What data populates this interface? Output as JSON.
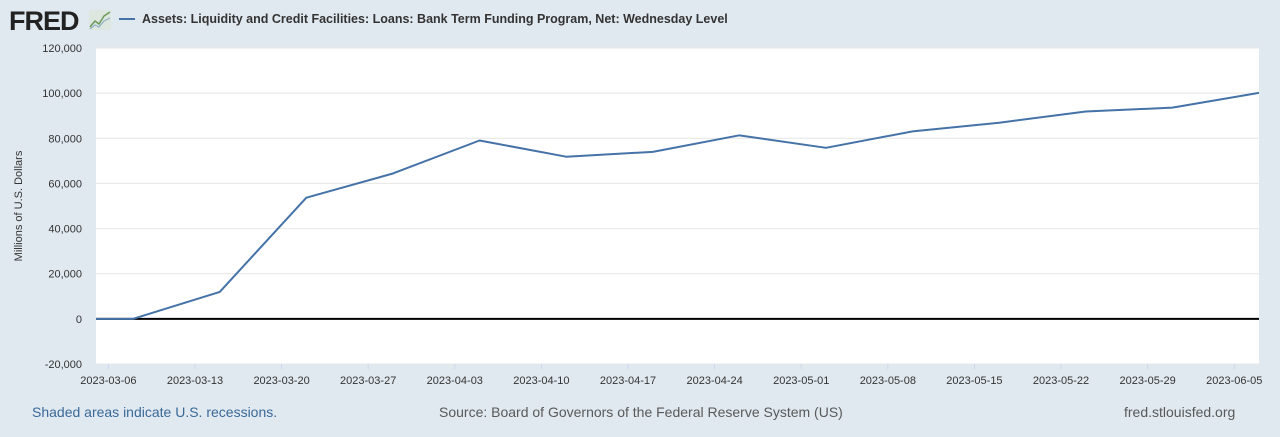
{
  "logo": "FRED",
  "legend": {
    "label": "Assets: Liquidity and Credit Facilities: Loans: Bank Term Funding Program, Net: Wednesday Level",
    "color": "#4572a7"
  },
  "footer": {
    "recessions_note": "Shaded areas indicate U.S. recessions.",
    "source": "Source: Board of Governors of the Federal Reserve System (US)",
    "site": "fred.stlouisfed.org"
  },
  "chart_data": {
    "type": "line",
    "title": "",
    "xlabel": "",
    "ylabel": "Millions of U.S. Dollars",
    "xlim": [
      "2023-03-05",
      "2023-06-07"
    ],
    "ylim": [
      -20000,
      120000
    ],
    "yticks": [
      -20000,
      0,
      20000,
      40000,
      60000,
      80000,
      100000,
      120000
    ],
    "ytick_labels": [
      "-20,000",
      "0",
      "20,000",
      "40,000",
      "60,000",
      "80,000",
      "100,000",
      "120,000"
    ],
    "xticks": [
      "2023-03-06",
      "2023-03-13",
      "2023-03-20",
      "2023-03-27",
      "2023-04-03",
      "2023-04-10",
      "2023-04-17",
      "2023-04-24",
      "2023-05-01",
      "2023-05-08",
      "2023-05-15",
      "2023-05-22",
      "2023-05-29",
      "2023-06-05"
    ],
    "grid": true,
    "series": [
      {
        "name": "Assets: Liquidity and Credit Facilities: Loans: Bank Term Funding Program, Net: Wednesday Level",
        "color": "#4572a7",
        "x": [
          "2023-03-01",
          "2023-03-08",
          "2023-03-15",
          "2023-03-22",
          "2023-03-29",
          "2023-04-05",
          "2023-04-12",
          "2023-04-19",
          "2023-04-26",
          "2023-05-03",
          "2023-05-10",
          "2023-05-17",
          "2023-05-24",
          "2023-05-31",
          "2023-06-07"
        ],
        "y": [
          0,
          0,
          11943,
          53669,
          64403,
          79020,
          71840,
          73981,
          81310,
          75779,
          83056,
          86896,
          91873,
          93577,
          100152
        ]
      }
    ]
  }
}
